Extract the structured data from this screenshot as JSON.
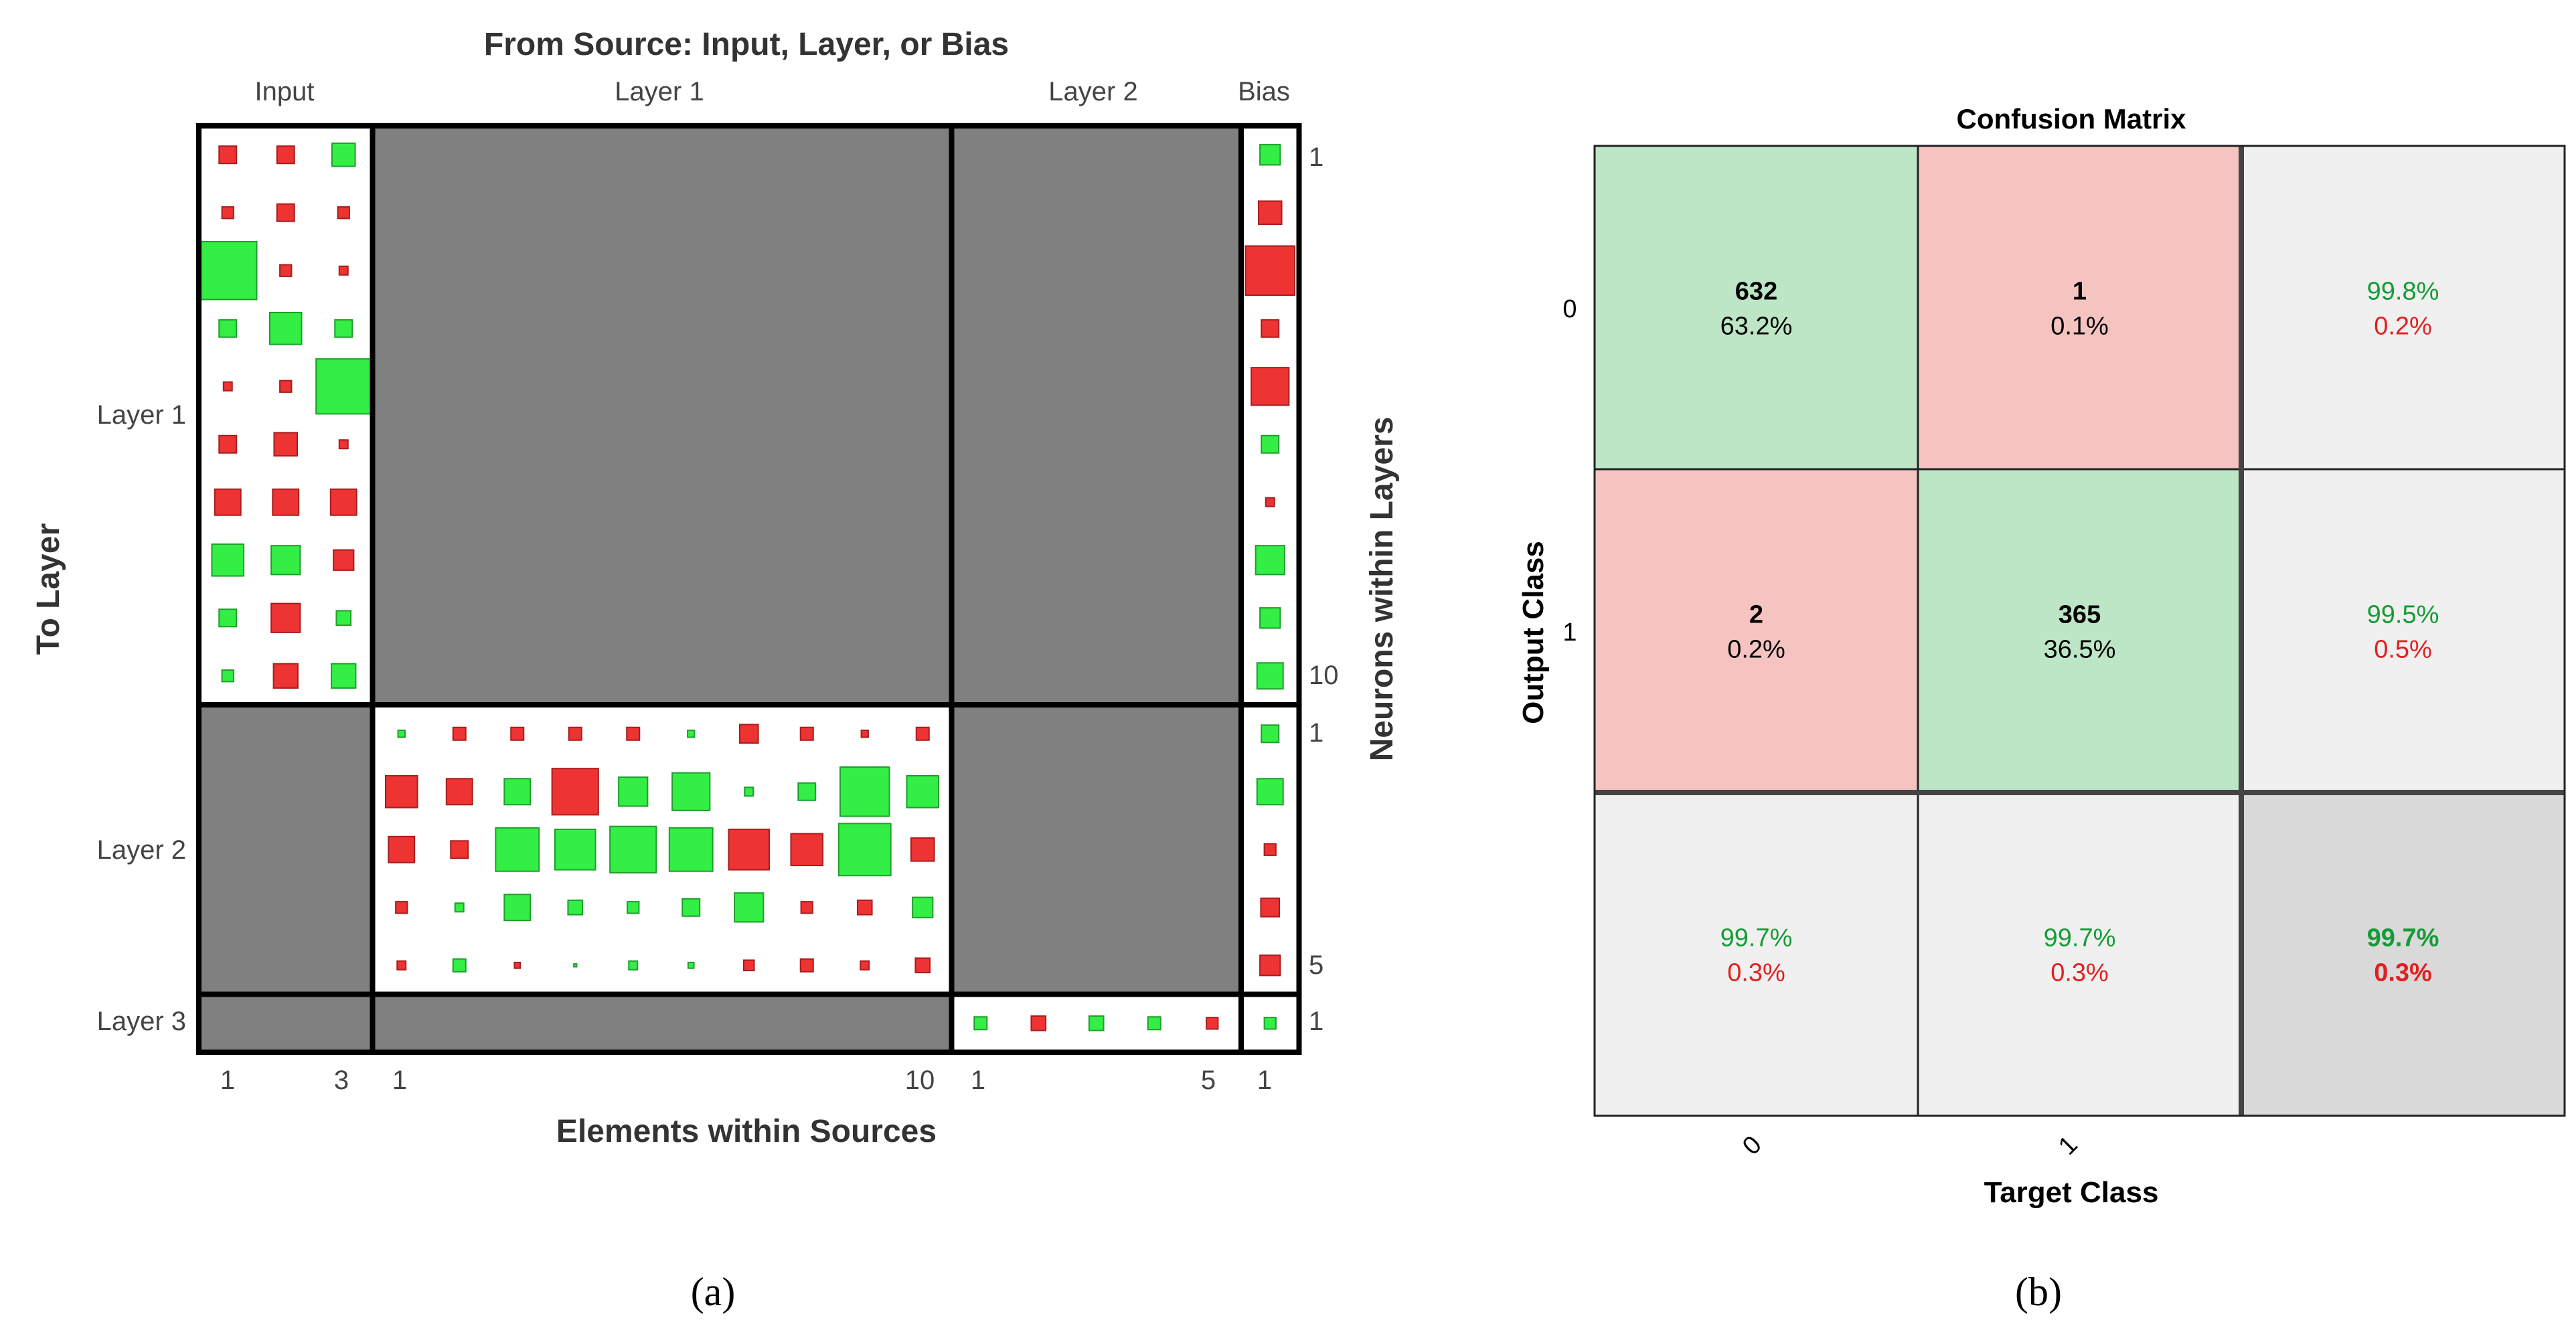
{
  "chart_data": [
    {
      "type": "hinton",
      "panel_label": "(a)",
      "title": "From Source: Input, Layer, or Bias",
      "xlabel": "Elements within Sources",
      "ylabel": "To Layer",
      "ylabel_right": "Neurons within Layers",
      "sources": [
        {
          "name": "Input",
          "size": 3,
          "tick_labels": [
            "1",
            "3"
          ]
        },
        {
          "name": "Layer 1",
          "size": 10,
          "tick_labels": [
            "1",
            "10"
          ]
        },
        {
          "name": "Layer 2",
          "size": 5,
          "tick_labels": [
            "1",
            "5"
          ]
        },
        {
          "name": "Bias",
          "size": 1,
          "tick_labels": [
            "1"
          ]
        }
      ],
      "layers": [
        {
          "name": "Layer 1",
          "size": 10,
          "tick_labels": [
            "1",
            "10"
          ]
        },
        {
          "name": "Layer 2",
          "size": 5,
          "tick_labels": [
            "1",
            "5"
          ]
        },
        {
          "name": "Layer 3",
          "size": 1,
          "tick_labels": [
            "1"
          ]
        }
      ],
      "colors": {
        "positive": "#33ee44",
        "negative": "#ee3333",
        "empty": "#808080",
        "border": "#000000"
      },
      "weights": {
        "Layer 1|Input": [
          [
            -0.3,
            -0.3,
            0.4
          ],
          [
            -0.2,
            -0.3,
            -0.2
          ],
          [
            1.0,
            -0.2,
            -0.15
          ],
          [
            0.3,
            0.55,
            0.3
          ],
          [
            -0.15,
            -0.2,
            0.95
          ],
          [
            -0.3,
            -0.4,
            -0.15
          ],
          [
            -0.45,
            -0.45,
            -0.45
          ],
          [
            0.55,
            0.5,
            -0.35
          ],
          [
            0.3,
            -0.5,
            0.25
          ],
          [
            0.2,
            -0.42,
            0.42
          ]
        ],
        "Layer 1|Bias": [
          [
            0.35
          ],
          [
            -0.4
          ],
          [
            -0.85
          ],
          [
            -0.3
          ],
          [
            -0.65
          ],
          [
            0.3
          ],
          [
            -0.15
          ],
          [
            0.5
          ],
          [
            0.35
          ],
          [
            0.45
          ]
        ],
        "Layer 2|Layer 1": [
          [
            0.12,
            -0.22,
            -0.22,
            -0.22,
            -0.22,
            0.12,
            -0.32,
            -0.22,
            -0.12,
            -0.22
          ],
          [
            -0.55,
            -0.45,
            0.45,
            -0.8,
            0.5,
            0.65,
            0.15,
            0.3,
            0.85,
            0.55
          ],
          [
            -0.45,
            -0.3,
            0.75,
            0.7,
            0.8,
            0.75,
            -0.7,
            -0.55,
            0.9,
            -0.4
          ],
          [
            -0.2,
            0.15,
            0.45,
            0.25,
            0.2,
            0.3,
            0.5,
            -0.2,
            -0.25,
            0.35
          ],
          [
            -0.15,
            0.22,
            -0.1,
            0.05,
            0.15,
            0.1,
            -0.18,
            -0.22,
            -0.15,
            -0.25
          ]
        ],
        "Layer 2|Bias": [
          [
            0.3
          ],
          [
            0.45
          ],
          [
            -0.2
          ],
          [
            -0.32
          ],
          [
            -0.35
          ]
        ],
        "Layer 3|Layer 2": [
          [
            0.22,
            -0.25,
            0.25,
            0.22,
            -0.2
          ]
        ],
        "Layer 3|Bias": [
          [
            0.2
          ]
        ]
      }
    },
    {
      "type": "confusion_matrix",
      "panel_label": "(b)",
      "title": "Confusion Matrix",
      "xlabel": "Target Class",
      "ylabel": "Output Class",
      "classes": [
        "0",
        "1"
      ],
      "counts": [
        [
          632,
          1
        ],
        [
          2,
          365
        ]
      ],
      "cells": [
        [
          {
            "count": "632",
            "pct": "63.2%"
          },
          {
            "count": "1",
            "pct": "0.1%"
          },
          {
            "good": "99.8%",
            "bad": "0.2%"
          }
        ],
        [
          {
            "count": "2",
            "pct": "0.2%"
          },
          {
            "count": "365",
            "pct": "36.5%"
          },
          {
            "good": "99.5%",
            "bad": "0.5%"
          }
        ],
        [
          {
            "good": "99.7%",
            "bad": "0.3%"
          },
          {
            "good": "99.7%",
            "bad": "0.3%"
          },
          {
            "good": "99.7%",
            "bad": "0.3%"
          }
        ]
      ],
      "colors": {
        "correct": "#bde6c6",
        "incorrect": "#f5c4c0",
        "summary": "#f0f0f0",
        "total": "#d9d9d9",
        "good_text": "#149c34",
        "bad_text": "#e02020"
      }
    }
  ]
}
